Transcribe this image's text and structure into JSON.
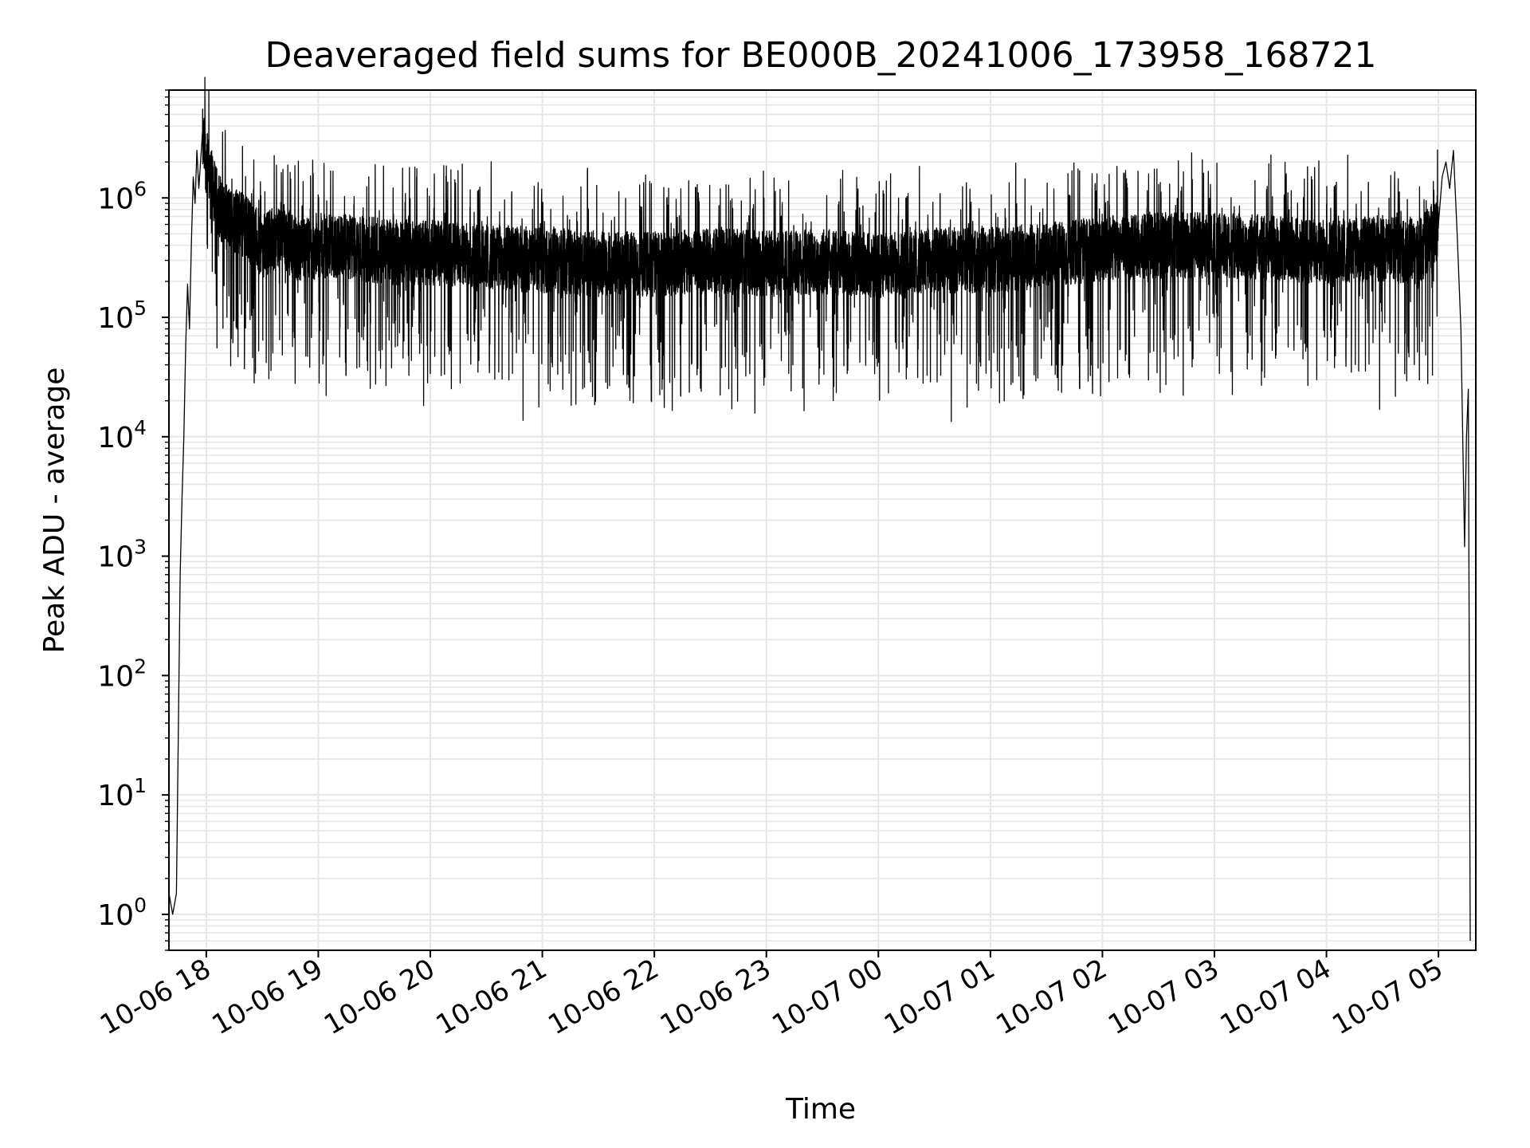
{
  "chart_data": {
    "type": "line",
    "title": "Deaveraged field sums for BE000B_20241006_173958_168721",
    "xlabel": "Time",
    "ylabel": "Peak ADU - average",
    "yscale": "log",
    "ylim": [
      0.5,
      8000000
    ],
    "xlim": [
      "2024-10-06 17:40",
      "2024-10-07 05:20"
    ],
    "grid": true,
    "line_color": "#000000",
    "grid_color": "#e6e6e6",
    "x_ticks": [
      "10-06 18",
      "10-06 19",
      "10-06 20",
      "10-06 21",
      "10-06 22",
      "10-06 23",
      "10-07 00",
      "10-07 01",
      "10-07 02",
      "10-07 03",
      "10-07 04",
      "10-07 05"
    ],
    "y_ticks": [
      {
        "base": "10",
        "exp": "0",
        "value": 1
      },
      {
        "base": "10",
        "exp": "1",
        "value": 10
      },
      {
        "base": "10",
        "exp": "2",
        "value": 100
      },
      {
        "base": "10",
        "exp": "3",
        "value": 1000
      },
      {
        "base": "10",
        "exp": "4",
        "value": 10000
      },
      {
        "base": "10",
        "exp": "5",
        "value": 100000
      },
      {
        "base": "10",
        "exp": "6",
        "value": 1000000
      }
    ],
    "series": [
      {
        "x": [
          "2024-10-06 17:40",
          "2024-10-06 17:42",
          "2024-10-06 17:44",
          "2024-10-06 17:45",
          "2024-10-06 17:46",
          "2024-10-06 17:47",
          "2024-10-06 17:48",
          "2024-10-06 17:49",
          "2024-10-06 17:50",
          "2024-10-06 17:51",
          "2024-10-06 17:52",
          "2024-10-06 17:53",
          "2024-10-06 17:54",
          "2024-10-06 17:55",
          "2024-10-06 17:56",
          "2024-10-06 17:58",
          "2024-10-06 18:00",
          "2024-10-06 18:05",
          "2024-10-06 18:10",
          "2024-10-06 18:20",
          "2024-10-06 18:30",
          "2024-10-06 18:40",
          "2024-10-06 18:50",
          "2024-10-06 19:00",
          "2024-10-06 19:20",
          "2024-10-06 19:40",
          "2024-10-06 20:00",
          "2024-10-06 20:30",
          "2024-10-06 21:00",
          "2024-10-06 21:30",
          "2024-10-06 22:00",
          "2024-10-06 22:30",
          "2024-10-06 23:00",
          "2024-10-06 23:30",
          "2024-10-07 00:00",
          "2024-10-07 00:30",
          "2024-10-07 01:00",
          "2024-10-07 01:30",
          "2024-10-07 02:00",
          "2024-10-07 02:30",
          "2024-10-07 03:00",
          "2024-10-07 03:30",
          "2024-10-07 04:00",
          "2024-10-07 04:30",
          "2024-10-07 04:50",
          "2024-10-07 05:00",
          "2024-10-07 05:02",
          "2024-10-07 05:04",
          "2024-10-07 05:06",
          "2024-10-07 05:08",
          "2024-10-07 05:10",
          "2024-10-07 05:12",
          "2024-10-07 05:14",
          "2024-10-07 05:15",
          "2024-10-07 05:16",
          "2024-10-07 05:17"
        ],
        "y": [
          1.5,
          1,
          1.5,
          30,
          700,
          3000,
          10000,
          60000,
          190000,
          80000,
          400000,
          1500000,
          900000,
          2500000,
          1200000,
          3000000,
          2000000,
          1000000,
          700000,
          600000,
          400000,
          500000,
          350000,
          400000,
          380000,
          350000,
          350000,
          320000,
          300000,
          280000,
          280000,
          300000,
          280000,
          290000,
          270000,
          300000,
          300000,
          330000,
          380000,
          400000,
          400000,
          380000,
          350000,
          380000,
          350000,
          600000,
          1500000,
          2000000,
          1200000,
          2500000,
          500000,
          80000,
          1200,
          10000,
          25000,
          0.6
        ]
      }
    ]
  }
}
